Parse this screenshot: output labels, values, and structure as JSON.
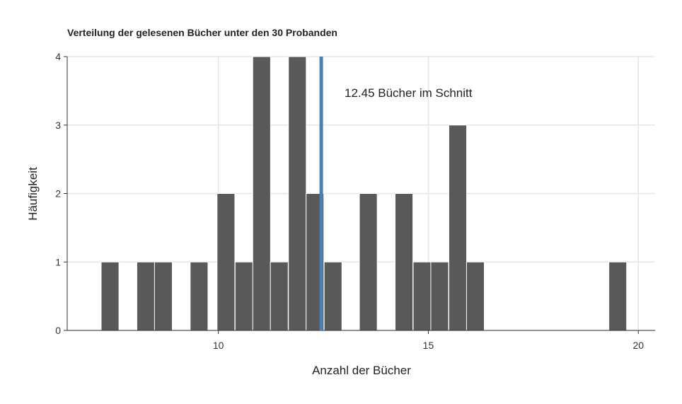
{
  "chart_data": {
    "type": "bar",
    "title": "Verteilung der gelesenen Bücher unter den 30 Probanden",
    "xlabel": "Anzahl der Bücher",
    "ylabel": "Häufigkeit",
    "xlim": [
      6.4,
      20.4
    ],
    "ylim": [
      0,
      4
    ],
    "x_ticks": [
      10,
      15,
      20
    ],
    "y_ticks": [
      0,
      1,
      2,
      3,
      4
    ],
    "bin_width": 0.4232,
    "bars": [
      {
        "x": 7.42,
        "count": 1
      },
      {
        "x": 8.27,
        "count": 1
      },
      {
        "x": 8.69,
        "count": 1
      },
      {
        "x": 9.54,
        "count": 1
      },
      {
        "x": 10.18,
        "count": 2
      },
      {
        "x": 10.61,
        "count": 1
      },
      {
        "x": 11.03,
        "count": 4
      },
      {
        "x": 11.45,
        "count": 1
      },
      {
        "x": 11.88,
        "count": 4
      },
      {
        "x": 12.3,
        "count": 2
      },
      {
        "x": 12.73,
        "count": 1
      },
      {
        "x": 13.57,
        "count": 2
      },
      {
        "x": 14.42,
        "count": 2
      },
      {
        "x": 14.85,
        "count": 1
      },
      {
        "x": 15.27,
        "count": 1
      },
      {
        "x": 15.7,
        "count": 3
      },
      {
        "x": 16.12,
        "count": 1
      },
      {
        "x": 19.51,
        "count": 1
      }
    ],
    "mean": 12.45,
    "mean_line_color": "#4682B4",
    "bar_color": "#595959",
    "grid": true,
    "annotation": "12.45 Bücher im Schnitt"
  }
}
